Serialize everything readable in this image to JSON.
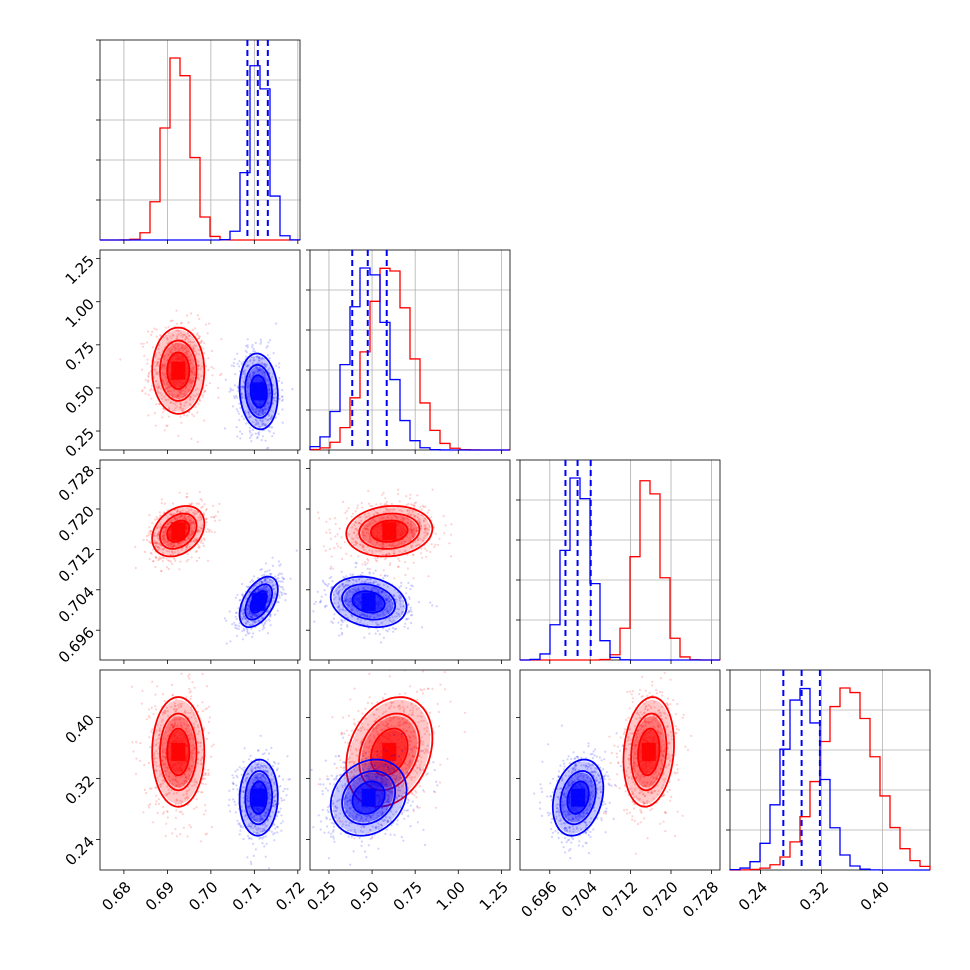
{
  "chart_data": {
    "type": "corner",
    "parameters": [
      {
        "ticks": [
          "0.68",
          "0.69",
          "0.70",
          "0.71",
          "0.72"
        ],
        "tick_values": [
          0.68,
          0.69,
          0.7,
          0.71,
          0.72
        ],
        "range": [
          0.6745,
          0.7205
        ]
      },
      {
        "ticks": [
          "0.25",
          "0.50",
          "0.75",
          "1.00",
          "1.25"
        ],
        "tick_values": [
          0.25,
          0.5,
          0.75,
          1.0,
          1.25
        ],
        "range": [
          0.14,
          1.3
        ]
      },
      {
        "ticks": [
          "0.696",
          "0.704",
          "0.712",
          "0.720",
          "0.728"
        ],
        "tick_values": [
          0.696,
          0.704,
          0.712,
          0.72,
          0.728
        ],
        "range": [
          0.6901,
          0.7297
        ]
      },
      {
        "ticks": [
          "0.24",
          "0.32",
          "0.40"
        ],
        "tick_values": [
          0.24,
          0.32,
          0.4
        ],
        "range": [
          0.2,
          0.4625
        ]
      }
    ],
    "series": [
      {
        "color": "#ff0000",
        "mean": [
          0.6925,
          0.6,
          0.7156,
          0.355
        ],
        "std": [
          0.003,
          0.125,
          0.0025,
          0.036
        ],
        "corr": {
          "0-1": 0.0,
          "0-2": 0.3,
          "0-3": 0.0,
          "1-2": 0.1,
          "1-3": 0.25,
          "2-3": 0.15
        }
      },
      {
        "color": "#0000ff",
        "mean": [
          0.711,
          0.48,
          0.7016,
          0.295
        ],
        "std": [
          0.0022,
          0.11,
          0.0025,
          0.025
        ],
        "corr": {
          "0-1": -0.1,
          "0-2": 0.5,
          "0-3": 0.05,
          "1-2": -0.2,
          "1-3": 0.2,
          "2-3": 0.25
        }
      }
    ],
    "quantile_lines": {
      "color": "#0000ff",
      "style": "dashed",
      "values": [
        [
          0.7084,
          0.7108,
          0.7131
        ],
        [
          0.385,
          0.475,
          0.585
        ],
        [
          0.6991,
          0.7015,
          0.7041
        ],
        [
          0.27,
          0.294,
          0.318
        ]
      ]
    },
    "grid": true
  }
}
